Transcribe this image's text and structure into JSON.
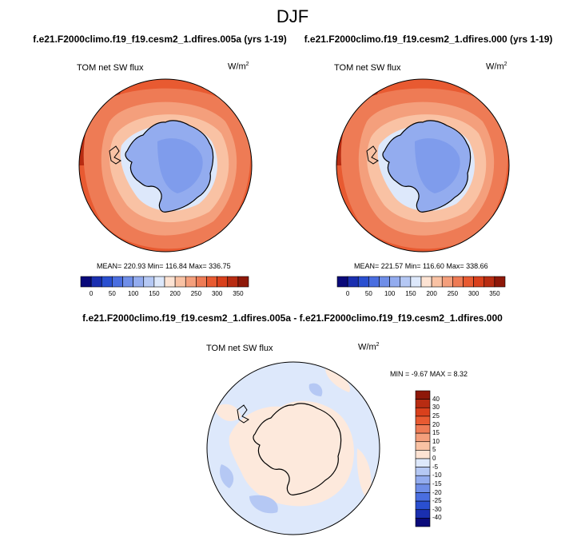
{
  "figure": {
    "season": "DJF",
    "difference_title": "f.e21.F2000climo.f19_f19.cesm2_1.dfires.005a - f.e21.F2000climo.f19_f19.cesm2_1.dfires.000"
  },
  "panels": [
    {
      "case_title": "f.e21.F2000climo.f19_f19.cesm2_1.dfires.005a (yrs 1-19)",
      "variable": "TOM net SW flux",
      "units": "W/m",
      "units_exp": "2",
      "stats": "MEAN= 220.93  Min= 116.84  Max= 336.75"
    },
    {
      "case_title": "f.e21.F2000climo.f19_f19.cesm2_1.dfires.000 (yrs 1-19)",
      "variable": "TOM net SW flux",
      "units": "W/m",
      "units_exp": "2",
      "stats": "MEAN= 221.57  Min= 116.60  Max= 338.66"
    },
    {
      "variable": "TOM net SW flux",
      "units": "W/m",
      "units_exp": "2",
      "stats": "MIN = -9.67 MAX =   8.32"
    }
  ],
  "colorbars": {
    "field": {
      "colors": [
        "#0a0a7a",
        "#1a2fb0",
        "#2a4fd0",
        "#4a6ee0",
        "#6f8ee8",
        "#93acef",
        "#b5c8f4",
        "#dde8fb",
        "#fde3d3",
        "#f9c2a4",
        "#f49f7c",
        "#ee7b55",
        "#e85a31",
        "#d9401c",
        "#b82c12",
        "#8e1809"
      ],
      "tick_labels": [
        "0",
        "50",
        "100",
        "150",
        "200",
        "250",
        "300",
        "350"
      ]
    },
    "diff": {
      "colors": [
        "#0a0a7a",
        "#1a2fb0",
        "#2a4fd0",
        "#4a6ee0",
        "#6f8ee8",
        "#93acef",
        "#b5c8f4",
        "#dde8fb",
        "#fde3d3",
        "#f9c2a4",
        "#f49f7c",
        "#ee7b55",
        "#e85a31",
        "#d9401c",
        "#b82c12",
        "#8e1809"
      ],
      "tick_labels": [
        "40",
        "30",
        "25",
        "20",
        "15",
        "10",
        "5",
        "0",
        "-5",
        "-10",
        "-15",
        "-20",
        "-25",
        "-30",
        "-40"
      ]
    }
  },
  "map_colors": {
    "antarctica": "#93acef",
    "antarctica_inner": "#7f9cec",
    "coast_band": "#dde8fb",
    "ocean_light": "#f9c2a4",
    "ocean_mid": "#f49f7c",
    "ocean_warm": "#ee7b55",
    "ocean_outer": "#e85a31",
    "ocean_deep": "#b82c12",
    "diff_positive": "#fde9dc",
    "diff_negative": "#dde8fb",
    "diff_negative_strong": "#b5c8f4"
  }
}
